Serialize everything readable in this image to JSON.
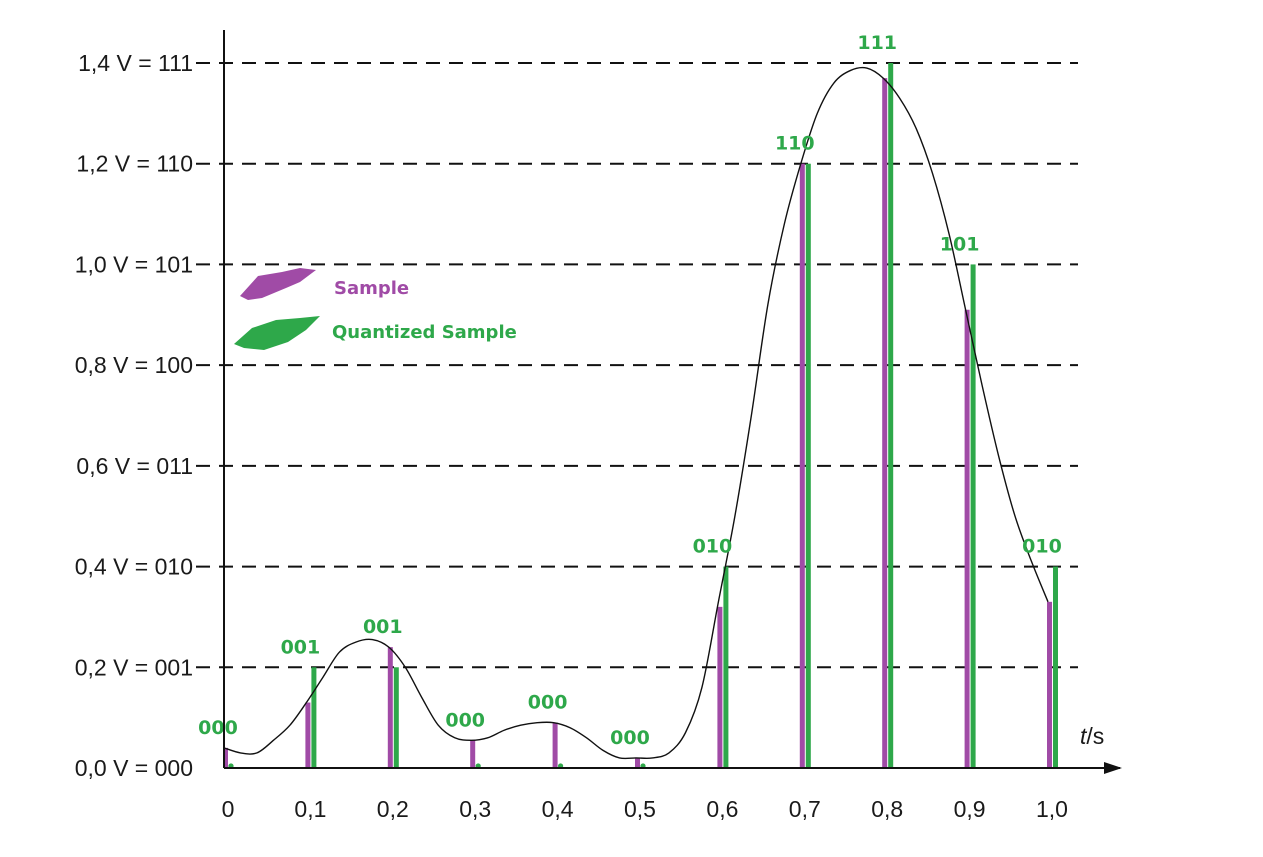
{
  "chart_data": {
    "type": "bar",
    "x": [
      0,
      0.1,
      0.2,
      0.3,
      0.4,
      0.5,
      0.6,
      0.7,
      0.8,
      0.9,
      1.0
    ],
    "x_tick_labels": [
      "0",
      "0,1",
      "0,2",
      "0,3",
      "0,4",
      "0,5",
      "0,6",
      "0,7",
      "0,8",
      "0,9",
      "1,0"
    ],
    "y_tick_values": [
      0,
      0.2,
      0.4,
      0.6,
      0.8,
      1.0,
      1.2,
      1.4
    ],
    "y_tick_labels": [
      "0,0 V = 000",
      "0,2 V = 001",
      "0,4 V = 010",
      "0,6 V = 011",
      "0,8 V = 100",
      "1,0 V = 101",
      "1,2 V = 110",
      "1,4 V = 111"
    ],
    "ylim": [
      0,
      1.4
    ],
    "xlim": [
      0,
      1.0
    ],
    "xlabel_var": "t",
    "xlabel_unit": "/s",
    "grid": "dashed horizontal lines at each quantization level",
    "series": [
      {
        "name": "Sample",
        "color": "#a04ba6",
        "values": [
          0.04,
          0.13,
          0.24,
          0.055,
          0.09,
          0.02,
          0.32,
          1.2,
          1.37,
          0.91,
          0.33
        ]
      },
      {
        "name": "Quantized Sample",
        "color": "#2ea84a",
        "values": [
          0.0,
          0.2,
          0.2,
          0.0,
          0.0,
          0.0,
          0.4,
          1.2,
          1.4,
          1.0,
          0.4
        ]
      }
    ],
    "quantized_code_labels": [
      "000",
      "001",
      "001",
      "000",
      "000",
      "000",
      "010",
      "110",
      "111",
      "101",
      "010"
    ],
    "signal_curve": {
      "x": [
        0,
        0.02,
        0.04,
        0.06,
        0.08,
        0.1,
        0.12,
        0.14,
        0.16,
        0.18,
        0.2,
        0.22,
        0.24,
        0.26,
        0.28,
        0.3,
        0.32,
        0.34,
        0.36,
        0.38,
        0.4,
        0.42,
        0.44,
        0.46,
        0.48,
        0.5,
        0.52,
        0.54,
        0.56,
        0.58,
        0.6,
        0.62,
        0.64,
        0.66,
        0.68,
        0.7,
        0.72,
        0.74,
        0.76,
        0.78,
        0.8,
        0.82,
        0.84,
        0.86,
        0.88,
        0.9,
        0.92,
        0.94,
        0.96,
        0.98,
        1.0
      ],
      "y": [
        0.04,
        0.03,
        0.03,
        0.055,
        0.085,
        0.13,
        0.18,
        0.23,
        0.25,
        0.255,
        0.24,
        0.2,
        0.14,
        0.085,
        0.06,
        0.055,
        0.06,
        0.075,
        0.085,
        0.09,
        0.09,
        0.08,
        0.06,
        0.035,
        0.02,
        0.02,
        0.02,
        0.03,
        0.07,
        0.16,
        0.33,
        0.5,
        0.7,
        0.92,
        1.08,
        1.2,
        1.3,
        1.36,
        1.385,
        1.39,
        1.37,
        1.33,
        1.27,
        1.18,
        1.06,
        0.91,
        0.76,
        0.62,
        0.5,
        0.41,
        0.33
      ]
    }
  }
}
